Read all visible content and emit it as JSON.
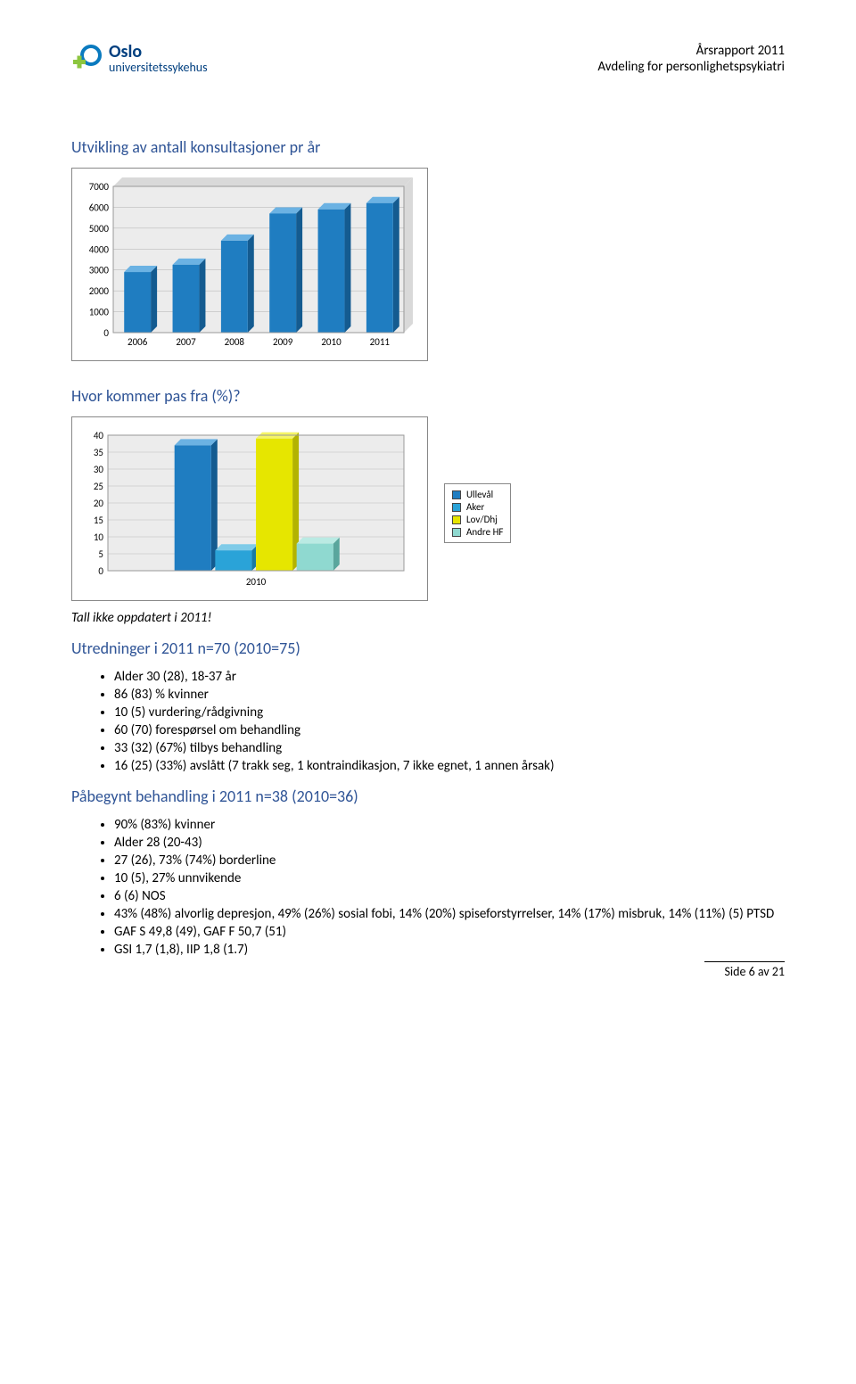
{
  "header": {
    "logo_line1": "Oslo",
    "logo_line2": "universitetssykehus",
    "right_line1": "Årsrapport 2011",
    "right_line2": "Avdeling for personlighetspsykiatri"
  },
  "section1": {
    "title": "Utvikling av antall konsultasjoner pr år",
    "chart": {
      "type": "bar",
      "categories": [
        "2006",
        "2007",
        "2008",
        "2009",
        "2010",
        "2011"
      ],
      "values": [
        2900,
        3250,
        4400,
        5700,
        5900,
        6200
      ],
      "ylim": [
        0,
        7000
      ],
      "ytick_step": 1000,
      "bar_face_color": "#1f7dc1",
      "bar_top_color": "#6bb2e3",
      "bar_side_color": "#145b90",
      "border_color": "#888888",
      "plot_bg": "#ffffff",
      "back_wall": "#d9d9d9",
      "floor": "#bfbfbf",
      "axis_font_size": 11
    }
  },
  "section2": {
    "title": "Hvor kommer pas fra (%)?",
    "chart": {
      "type": "bar",
      "year_label": "2010",
      "series": [
        {
          "name": "Ullevål",
          "value": 37,
          "face": "#1f7dc1",
          "top": "#6bb2e3",
          "side": "#145b90"
        },
        {
          "name": "Aker",
          "value": 6,
          "face": "#2aa3d8",
          "top": "#7fcbe8",
          "side": "#1a7aa3"
        },
        {
          "name": "Lov/Dhj",
          "value": 39,
          "face": "#e6e600",
          "top": "#f5f566",
          "side": "#b3b300"
        },
        {
          "name": "Andre HF",
          "value": 8,
          "face": "#8fd9d0",
          "top": "#baeae3",
          "side": "#5aa69d"
        }
      ],
      "ylim": [
        0,
        40
      ],
      "ytick_step": 5,
      "border_color": "#888888",
      "plot_bg": "#ffffff",
      "back_wall": "#d9d9d9",
      "floor": "#bfbfbf",
      "axis_font_size": 11
    },
    "note": "Tall ikke oppdatert i 2011!"
  },
  "section3": {
    "title": "Utredninger i 2011 n=70 (2010=75)",
    "bullets": [
      "Alder 30 (28), 18-37 år",
      "86 (83) % kvinner",
      "10 (5) vurdering/rådgivning",
      "60 (70) forespørsel om behandling",
      "33 (32) (67%) tilbys behandling",
      "16 (25) (33%) avslått (7 trakk seg, 1 kontraindikasjon, 7 ikke egnet, 1 annen årsak)"
    ]
  },
  "section4": {
    "title": "Påbegynt behandling i 2011 n=38 (2010=36)",
    "bullets": [
      "90% (83%) kvinner",
      "Alder 28 (20-43)",
      "27 (26), 73% (74%) borderline",
      "10 (5), 27% unnvikende",
      "6 (6)  NOS",
      "43% (48%) alvorlig depresjon, 49% (26%) sosial fobi, 14% (20%) spiseforstyrrelser, 14% (17%) misbruk, 14% (11%) (5) PTSD",
      "GAF S 49,8 (49), GAF F 50,7 (51)",
      "GSI 1,7 (1,8), IIP 1,8 (1.7)"
    ]
  },
  "footer": {
    "text": "Side 6 av 21"
  }
}
